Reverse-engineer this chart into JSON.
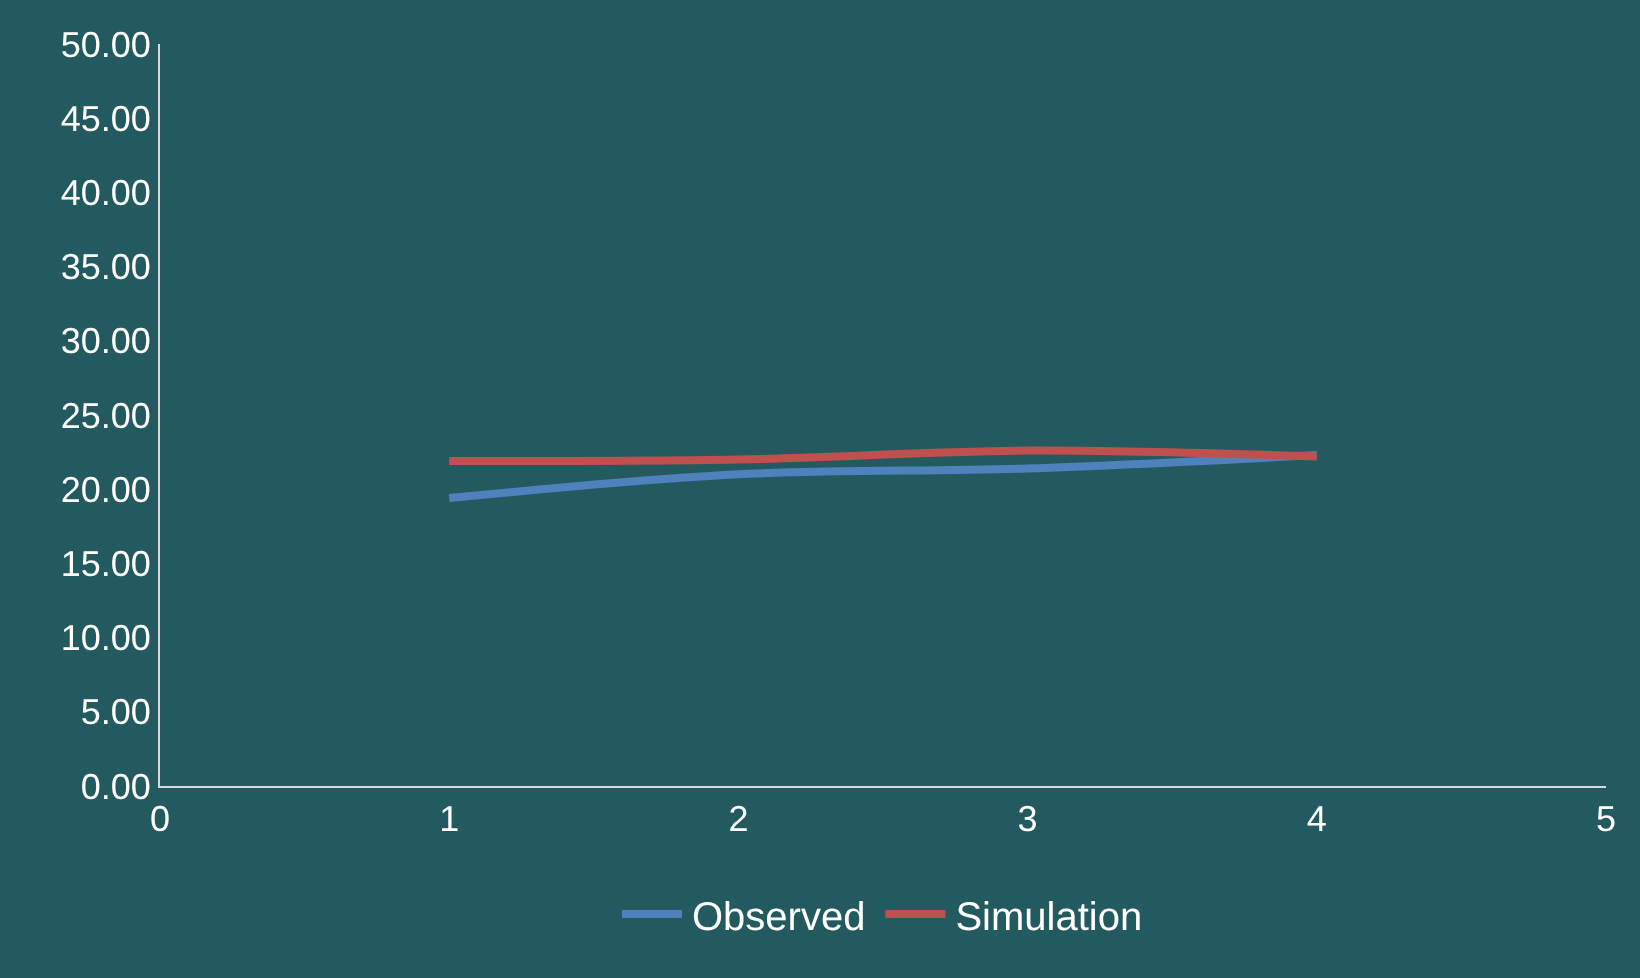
{
  "chart_data": {
    "type": "line",
    "x": [
      1,
      2,
      3,
      4
    ],
    "xlim": [
      0,
      5
    ],
    "xticks": [
      0,
      1,
      2,
      3,
      4,
      5
    ],
    "ylim": [
      0,
      50
    ],
    "yticks": [
      {
        "value": 0,
        "label": "0.00"
      },
      {
        "value": 5,
        "label": "5.00"
      },
      {
        "value": 10,
        "label": "10.00"
      },
      {
        "value": 15,
        "label": "15.00"
      },
      {
        "value": 20,
        "label": "20.00"
      },
      {
        "value": 25,
        "label": "25.00"
      },
      {
        "value": 30,
        "label": "30.00"
      },
      {
        "value": 35,
        "label": "35.00"
      },
      {
        "value": 40,
        "label": "40.00"
      },
      {
        "value": 45,
        "label": "45.00"
      },
      {
        "value": 50,
        "label": "50.00"
      }
    ],
    "grid": false,
    "legend": "bottom",
    "marker": "none",
    "line_style": "solid",
    "series": [
      {
        "name": "Observed",
        "color": "#4f81bd",
        "values": [
          19.4,
          21.0,
          21.4,
          22.3
        ]
      },
      {
        "name": "Simulation",
        "color": "#c0504d",
        "values": [
          21.9,
          22.0,
          22.6,
          22.2
        ]
      }
    ]
  }
}
